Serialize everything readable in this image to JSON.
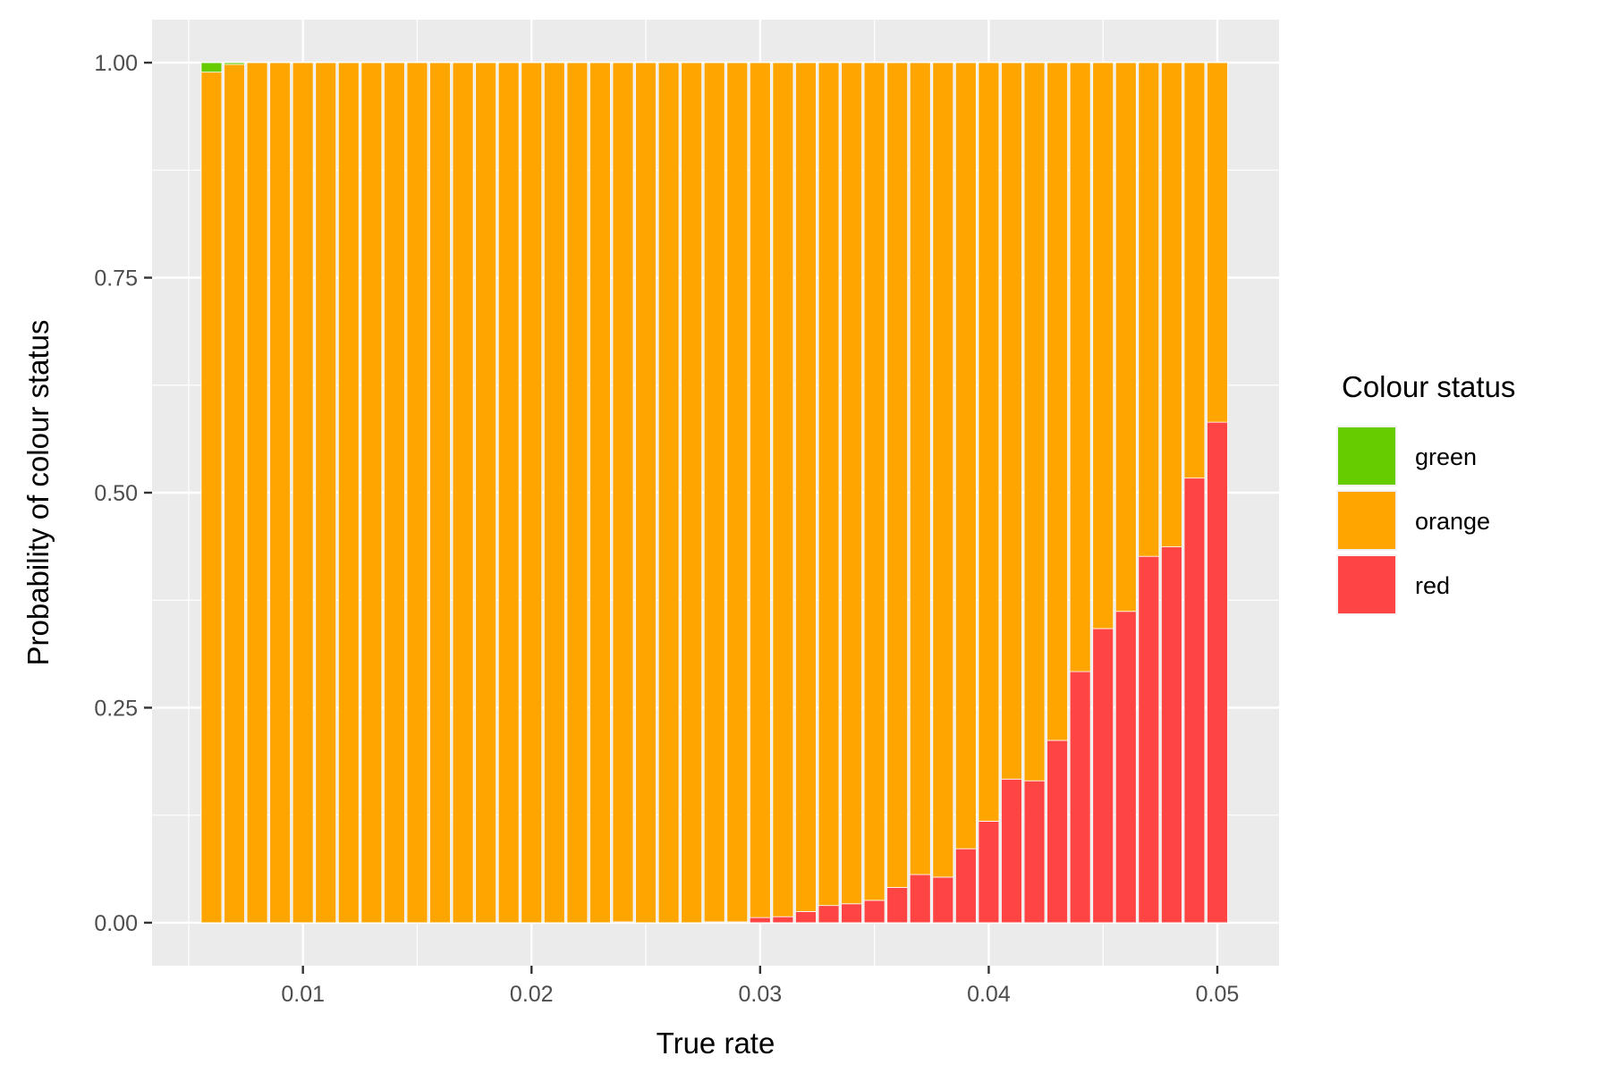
{
  "chart_data": {
    "type": "bar",
    "stacked": true,
    "xlabel": "True rate",
    "ylabel": "Probability of colour status",
    "xlim": [
      0.0034,
      0.0527
    ],
    "ylim": [
      -0.05,
      1.05
    ],
    "x_ticks": [
      {
        "value": 0.01,
        "label": "0.01"
      },
      {
        "value": 0.02,
        "label": "0.02"
      },
      {
        "value": 0.03,
        "label": "0.03"
      },
      {
        "value": 0.04,
        "label": "0.04"
      },
      {
        "value": 0.05,
        "label": "0.05"
      }
    ],
    "y_ticks": [
      {
        "value": 0,
        "label": "0.00"
      },
      {
        "value": 0.25,
        "label": "0.25"
      },
      {
        "value": 0.5,
        "label": "0.50"
      },
      {
        "value": 0.75,
        "label": "0.75"
      },
      {
        "value": 1,
        "label": "1.00"
      }
    ],
    "grid": true,
    "legend": {
      "title": "Colour status",
      "position": "right"
    },
    "x": [
      0.006,
      0.007,
      0.008,
      0.009,
      0.01,
      0.011,
      0.012,
      0.013,
      0.014,
      0.015,
      0.016,
      0.017,
      0.018,
      0.019,
      0.02,
      0.021,
      0.022,
      0.023,
      0.024,
      0.025,
      0.026,
      0.027,
      0.028,
      0.029,
      0.03,
      0.031,
      0.032,
      0.033,
      0.034,
      0.035,
      0.036,
      0.037,
      0.038,
      0.039,
      0.04,
      0.041,
      0.042,
      0.043,
      0.044,
      0.045,
      0.046,
      0.047,
      0.048,
      0.049,
      0.05
    ],
    "series": [
      {
        "name": "green",
        "color": "#66CC00",
        "values": [
          0.011,
          0.002,
          0,
          0,
          0,
          0,
          0,
          0,
          0,
          0,
          0,
          0,
          0,
          0,
          0,
          0,
          0,
          0,
          0,
          0,
          0,
          0,
          0,
          0,
          0,
          0,
          0,
          0,
          0,
          0,
          0,
          0,
          0,
          0,
          0,
          0,
          0,
          0,
          0,
          0,
          0,
          0,
          0,
          0,
          0
        ]
      },
      {
        "name": "orange",
        "color": "#FFA500",
        "values": [
          0.989,
          0.998,
          1,
          1,
          1,
          1,
          1,
          1,
          1,
          1,
          1,
          1,
          1,
          1,
          1,
          1,
          1,
          1,
          0.999,
          1,
          1,
          1,
          0.999,
          0.999,
          0.994,
          0.993,
          0.987,
          0.98,
          0.978,
          0.974,
          0.959,
          0.944,
          0.947,
          0.914,
          0.882,
          0.833,
          0.835,
          0.788,
          0.708,
          0.658,
          0.638,
          0.574,
          0.563,
          0.483,
          0.418
        ]
      },
      {
        "name": "red",
        "color": "#FF4444",
        "values": [
          0,
          0,
          0,
          0,
          0,
          0,
          0,
          0,
          0,
          0,
          0,
          0,
          0,
          0,
          0,
          0,
          0,
          0,
          0.001,
          0,
          0,
          0,
          0.001,
          0.001,
          0.006,
          0.007,
          0.013,
          0.02,
          0.022,
          0.026,
          0.041,
          0.056,
          0.053,
          0.086,
          0.118,
          0.167,
          0.165,
          0.212,
          0.292,
          0.342,
          0.362,
          0.426,
          0.437,
          0.517,
          0.582
        ]
      }
    ]
  }
}
